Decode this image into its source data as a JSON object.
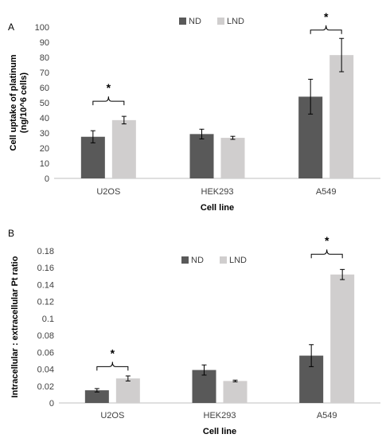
{
  "colors": {
    "ND": "#595959",
    "LND": "#d0cece",
    "axis": "#bfbfbf",
    "text": "#404040"
  },
  "chart_data": [
    {
      "type": "bar",
      "panel_label": "A",
      "categories": [
        "U2OS",
        "HEK293",
        "A549"
      ],
      "series": [
        {
          "name": "ND",
          "values": [
            27.5,
            29.3,
            54.0
          ],
          "errors": [
            4.0,
            3.2,
            11.5
          ]
        },
        {
          "name": "LND",
          "values": [
            38.5,
            26.8,
            81.5
          ],
          "errors": [
            2.5,
            1.0,
            11.0
          ]
        }
      ],
      "ylabel": "Cell uptake of platinum (ng/10^6 cells)",
      "ylabel_lines": [
        "Cell uptake of platinum",
        "(ng/10^6 cells)"
      ],
      "xlabel": "Cell line",
      "ylim": [
        0,
        100
      ],
      "yticks": [
        0,
        10,
        20,
        30,
        40,
        50,
        60,
        70,
        80,
        90,
        100
      ],
      "ytick_labels": [
        "0",
        "10",
        "20",
        "30",
        "40",
        "50",
        "60",
        "70",
        "80",
        "90",
        "100"
      ],
      "legend": "top-center",
      "grid": false,
      "annotations": [
        {
          "text": "*",
          "category": "U2OS",
          "y_data": 51
        },
        {
          "text": "*",
          "category": "A549",
          "y_data": 98
        }
      ]
    },
    {
      "type": "bar",
      "panel_label": "B",
      "categories": [
        "U2OS",
        "HEK293",
        "A549"
      ],
      "series": [
        {
          "name": "ND",
          "values": [
            0.015,
            0.039,
            0.056
          ],
          "errors": [
            0.002,
            0.006,
            0.013
          ]
        },
        {
          "name": "LND",
          "values": [
            0.029,
            0.026,
            0.152
          ],
          "errors": [
            0.003,
            0.001,
            0.006
          ]
        }
      ],
      "ylabel": "Intracellular : extracellular  Pt ratio",
      "ylabel_lines": [
        "Intracellular : extracellular  Pt ratio"
      ],
      "xlabel": "Cell line",
      "ylim": [
        0,
        0.18
      ],
      "yticks": [
        0,
        0.02,
        0.04,
        0.06,
        0.08,
        0.1,
        0.12,
        0.14,
        0.16,
        0.18
      ],
      "ytick_labels": [
        "0",
        "0.02",
        "0.04",
        "0.06",
        "0.08",
        "0.1",
        "0.12",
        "0.14",
        "0.16",
        "0.18"
      ],
      "legend": "top-center",
      "grid": false,
      "annotations": [
        {
          "text": "*",
          "category": "U2OS",
          "y_data": 0.043
        },
        {
          "text": "*",
          "category": "A549",
          "y_data": 0.176
        }
      ]
    }
  ]
}
